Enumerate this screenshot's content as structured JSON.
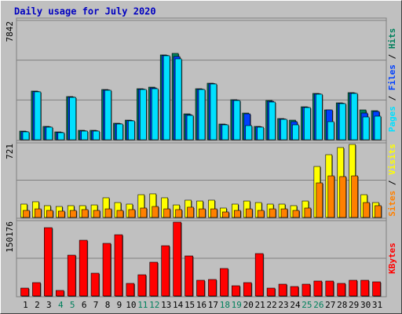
{
  "title": "Daily usage for July 2020",
  "legend_separator": " / ",
  "chart_data": [
    {
      "type": "bar",
      "ylim": [
        0,
        7842
      ],
      "yticks": [
        7842
      ],
      "grid": true,
      "series": [
        {
          "name": "Pages",
          "color": "#00e0ff",
          "values": [
            516,
            3148,
            826,
            464,
            2786,
            568,
            568,
            3251,
            1032,
            1238,
            3302,
            3354,
            5521,
            5315,
            1600,
            3302,
            3664,
            980,
            2580,
            929,
            826,
            2477,
            1342,
            980,
            2116,
            2993,
            1187,
            2374,
            3044,
            1496,
            1548
          ]
        },
        {
          "name": "Files",
          "color": "#0040ff",
          "values": [
            540,
            3170,
            850,
            490,
            2810,
            590,
            590,
            3275,
            1058,
            1264,
            3328,
            3405,
            5547,
            5470,
            1650,
            3328,
            3690,
            1006,
            2606,
            1703,
            850,
            2528,
            1368,
            1187,
            2140,
            3018,
            1961,
            2400,
            3070,
            1754,
            1857
          ]
        },
        {
          "name": "Hits",
          "color": "#00805c",
          "values": [
            568,
            3199,
            877,
            516,
            2838,
            619,
            619,
            3302,
            1084,
            1290,
            3354,
            3457,
            5573,
            5676,
            1703,
            3354,
            3715,
            1032,
            2632,
            1754,
            877,
            2580,
            1393,
            1290,
            2167,
            3044,
            1961,
            2425,
            3096,
            1961,
            1909
          ]
        }
      ]
    },
    {
      "type": "bar",
      "ylim": [
        0,
        721
      ],
      "yticks": [
        721
      ],
      "grid": true,
      "series": [
        {
          "name": "Sites",
          "color": "#ff8000",
          "values": [
            68,
            83,
            68,
            61,
            68,
            76,
            68,
            83,
            68,
            76,
            91,
            106,
            83,
            76,
            99,
            83,
            83,
            53,
            68,
            83,
            68,
            83,
            83,
            68,
            91,
            334,
            402,
            395,
            402,
            144,
            114
          ]
        },
        {
          "name": "Visits",
          "color": "#ffff00",
          "values": [
            129,
            152,
            114,
            106,
            114,
            114,
            121,
            190,
            144,
            129,
            220,
            228,
            190,
            121,
            167,
            159,
            167,
            91,
            129,
            159,
            144,
            129,
            129,
            114,
            159,
            493,
            607,
            676,
            706,
            220,
            144
          ]
        }
      ]
    },
    {
      "type": "bar",
      "ylim": [
        0,
        150176
      ],
      "yticks": [
        150176
      ],
      "grid": true,
      "categories": [
        "1",
        "2",
        "3",
        "4",
        "5",
        "6",
        "7",
        "8",
        "9",
        "10",
        "11",
        "12",
        "13",
        "14",
        "15",
        "16",
        "17",
        "18",
        "19",
        "20",
        "21",
        "22",
        "23",
        "24",
        "25",
        "26",
        "27",
        "28",
        "29",
        "30",
        "31"
      ],
      "category_colors": [
        "#000000",
        "#000000",
        "#000000",
        "#00805c",
        "#00805c",
        "#000000",
        "#000000",
        "#000000",
        "#000000",
        "#000000",
        "#00805c",
        "#00805c",
        "#000000",
        "#000000",
        "#000000",
        "#000000",
        "#000000",
        "#00805c",
        "#00805c",
        "#000000",
        "#000000",
        "#000000",
        "#000000",
        "#000000",
        "#00805c",
        "#00805c",
        "#000000",
        "#000000",
        "#000000",
        "#000000",
        "#000000"
      ],
      "series": [
        {
          "name": "KBytes",
          "color": "#ff0000",
          "values": [
            15640,
            26590,
            136070,
            10950,
            81330,
            111040,
            45360,
            104790,
            121990,
            25020,
            42230,
            67250,
            100100,
            147050,
            79760,
            31280,
            32840,
            54740,
            20330,
            26590,
            84460,
            15640,
            23460,
            18770,
            23460,
            29720,
            29720,
            25020,
            31280,
            31280,
            28150
          ]
        }
      ]
    }
  ]
}
